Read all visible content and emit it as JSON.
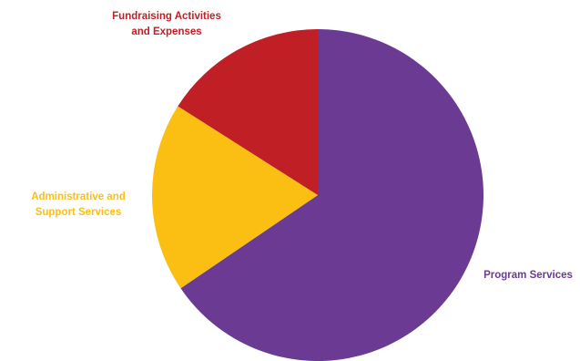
{
  "chart_data": {
    "type": "pie",
    "title": "",
    "start_angle_deg": 0,
    "direction": "clockwise",
    "slices": [
      {
        "label_lines": [
          "Program Services"
        ],
        "value": 65.5,
        "color": "#6b3a93",
        "label_color": "#6b3a93"
      },
      {
        "label_lines": [
          "Administrative  and",
          "Support Services"
        ],
        "value": 18.5,
        "color": "#fbbf14",
        "label_color": "#fbbf14"
      },
      {
        "label_lines": [
          "Fundraising Activities",
          "and Expenses"
        ],
        "value": 16.0,
        "color": "#c01f25",
        "label_color": "#c01f25"
      }
    ]
  }
}
